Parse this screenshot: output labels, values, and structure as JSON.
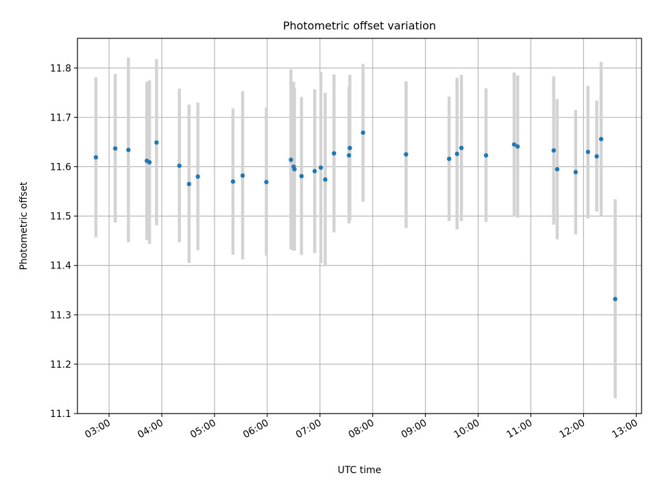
{
  "chart_data": {
    "type": "scatter",
    "title": "Photometric offset variation",
    "xlabel": "UTC time",
    "ylabel": "Photometric offset",
    "xlim": [
      "02:24",
      "13:06"
    ],
    "ylim": [
      11.1,
      11.86
    ],
    "x_ticks": [
      "03:00",
      "04:00",
      "05:00",
      "06:00",
      "07:00",
      "08:00",
      "09:00",
      "10:00",
      "11:00",
      "12:00",
      "13:00"
    ],
    "y_ticks": [
      "11.1",
      "11.2",
      "11.3",
      "11.4",
      "11.5",
      "11.6",
      "11.7",
      "11.8"
    ],
    "grid": true,
    "legend": "none",
    "point_color": "#1f77b4",
    "errorbar_color": "#d3d3d3",
    "points": [
      {
        "x": "02:45",
        "y": 11.619,
        "err_low": 11.457,
        "err_high": 11.781
      },
      {
        "x": "03:07",
        "y": 11.637,
        "err_low": 11.487,
        "err_high": 11.788
      },
      {
        "x": "03:22",
        "y": 11.634,
        "err_low": 11.447,
        "err_high": 11.821
      },
      {
        "x": "03:43",
        "y": 11.612,
        "err_low": 11.452,
        "err_high": 11.772
      },
      {
        "x": "03:46",
        "y": 11.609,
        "err_low": 11.444,
        "err_high": 11.775
      },
      {
        "x": "03:54",
        "y": 11.649,
        "err_low": 11.481,
        "err_high": 11.818
      },
      {
        "x": "04:20",
        "y": 11.602,
        "err_low": 11.447,
        "err_high": 11.758
      },
      {
        "x": "04:31",
        "y": 11.565,
        "err_low": 11.405,
        "err_high": 11.726
      },
      {
        "x": "04:41",
        "y": 11.58,
        "err_low": 11.431,
        "err_high": 11.73
      },
      {
        "x": "05:21",
        "y": 11.57,
        "err_low": 11.422,
        "err_high": 11.718
      },
      {
        "x": "05:32",
        "y": 11.582,
        "err_low": 11.412,
        "err_high": 11.753
      },
      {
        "x": "05:59",
        "y": 11.569,
        "err_low": 11.42,
        "err_high": 11.72
      },
      {
        "x": "06:27",
        "y": 11.614,
        "err_low": 11.432,
        "err_high": 11.797
      },
      {
        "x": "06:30",
        "y": 11.6,
        "err_low": 11.43,
        "err_high": 11.772
      },
      {
        "x": "06:31",
        "y": 11.595,
        "err_low": 11.43,
        "err_high": 11.76
      },
      {
        "x": "06:39",
        "y": 11.581,
        "err_low": 11.421,
        "err_high": 11.741
      },
      {
        "x": "06:54",
        "y": 11.591,
        "err_low": 11.425,
        "err_high": 11.757
      },
      {
        "x": "07:01",
        "y": 11.598,
        "err_low": 11.405,
        "err_high": 11.792
      },
      {
        "x": "07:06",
        "y": 11.574,
        "err_low": 11.4,
        "err_high": 11.75
      },
      {
        "x": "07:16",
        "y": 11.627,
        "err_low": 11.467,
        "err_high": 11.787
      },
      {
        "x": "07:33",
        "y": 11.623,
        "err_low": 11.485,
        "err_high": 11.762
      },
      {
        "x": "07:34",
        "y": 11.638,
        "err_low": 11.491,
        "err_high": 11.786
      },
      {
        "x": "07:49",
        "y": 11.669,
        "err_low": 11.529,
        "err_high": 11.808
      },
      {
        "x": "08:38",
        "y": 11.625,
        "err_low": 11.476,
        "err_high": 11.773
      },
      {
        "x": "09:27",
        "y": 11.616,
        "err_low": 11.49,
        "err_high": 11.742
      },
      {
        "x": "09:36",
        "y": 11.626,
        "err_low": 11.473,
        "err_high": 11.78
      },
      {
        "x": "09:41",
        "y": 11.638,
        "err_low": 11.49,
        "err_high": 11.786
      },
      {
        "x": "10:09",
        "y": 11.623,
        "err_low": 11.488,
        "err_high": 11.759
      },
      {
        "x": "10:41",
        "y": 11.645,
        "err_low": 11.499,
        "err_high": 11.791
      },
      {
        "x": "10:45",
        "y": 11.641,
        "err_low": 11.497,
        "err_high": 11.785
      },
      {
        "x": "11:26",
        "y": 11.633,
        "err_low": 11.483,
        "err_high": 11.783
      },
      {
        "x": "11:30",
        "y": 11.595,
        "err_low": 11.453,
        "err_high": 11.737
      },
      {
        "x": "11:51",
        "y": 11.589,
        "err_low": 11.463,
        "err_high": 11.715
      },
      {
        "x": "12:05",
        "y": 11.63,
        "err_low": 11.495,
        "err_high": 11.764
      },
      {
        "x": "12:15",
        "y": 11.621,
        "err_low": 11.509,
        "err_high": 11.734
      },
      {
        "x": "12:20",
        "y": 11.656,
        "err_low": 11.5,
        "err_high": 11.812
      },
      {
        "x": "12:36",
        "y": 11.332,
        "err_low": 11.131,
        "err_high": 11.534
      }
    ]
  }
}
